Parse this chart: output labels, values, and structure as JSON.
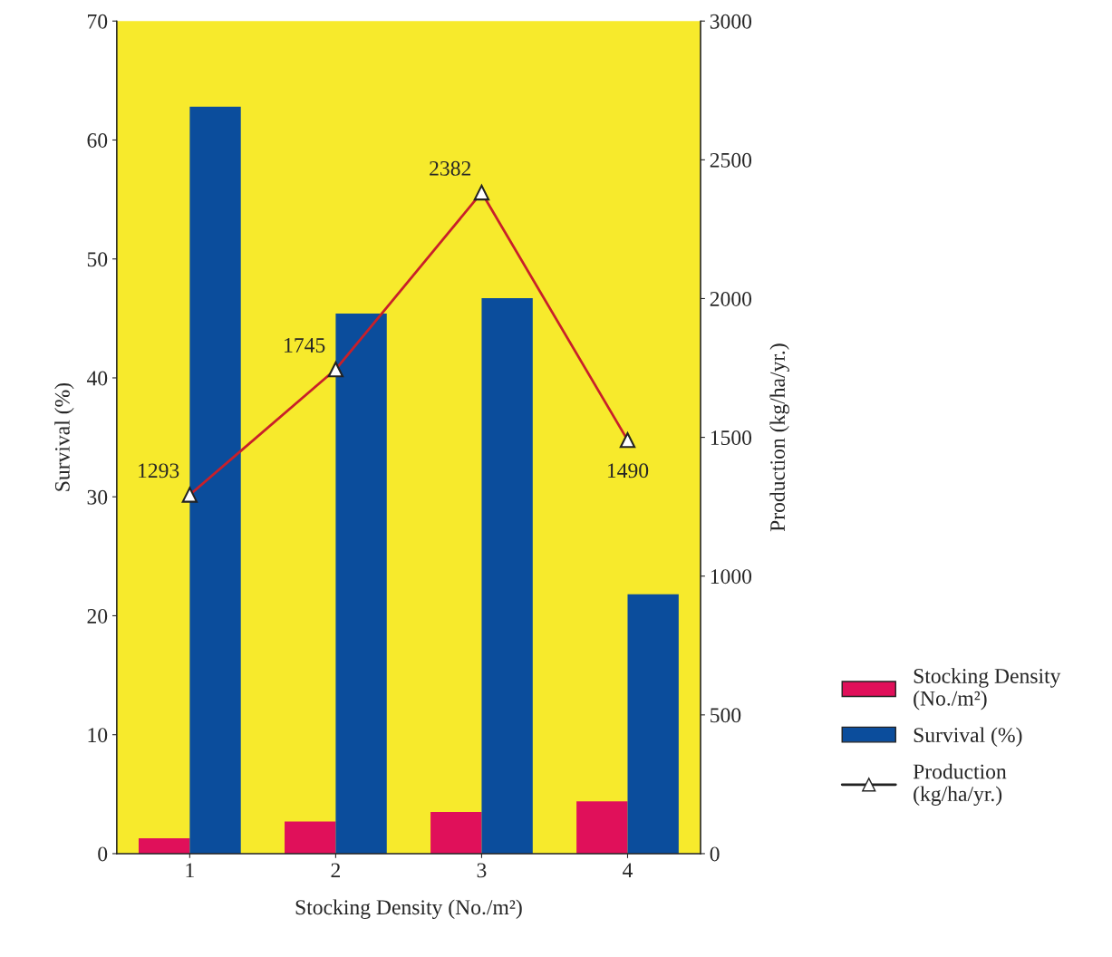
{
  "chart_data": {
    "type": "bar",
    "categories": [
      "1",
      "2",
      "3",
      "4"
    ],
    "xlabel": "Stocking Density (No./m²)",
    "ylabel": "Survival (%)",
    "y2label": "Production (kg/ha/yr.)",
    "ylim": [
      0,
      70
    ],
    "yticks": [
      0,
      10,
      20,
      30,
      40,
      50,
      60,
      70
    ],
    "y2lim": [
      0,
      3000
    ],
    "y2ticks": [
      0,
      500,
      1000,
      1500,
      2000,
      2500,
      3000
    ],
    "legend": "right",
    "grid": false,
    "series": [
      {
        "name": "Stocking Density (No./m²)",
        "color": "#e0105a",
        "values": [
          1.3,
          2.7,
          3.5,
          4.4
        ]
      },
      {
        "name": "Survival (%)",
        "color": "#0b4d9c",
        "values": [
          62.8,
          45.4,
          46.7,
          21.8
        ]
      },
      {
        "name": "Production (kg/ha/yr.)",
        "type": "line",
        "axis": "y2",
        "color": "#c8202a",
        "marker": "triangle",
        "values": [
          1293,
          1745,
          2382,
          1490
        ],
        "value_labels": [
          "1293",
          "1745",
          "2382",
          "1490"
        ]
      }
    ]
  }
}
